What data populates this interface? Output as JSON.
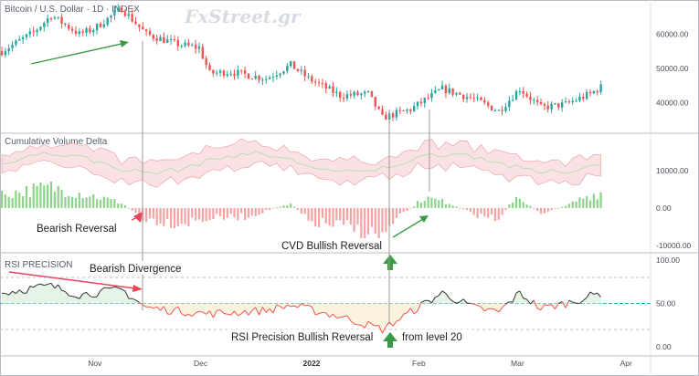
{
  "colors": {
    "up": "#26a69a",
    "down": "#ef5350",
    "arrow_green": "#3a9a45",
    "arrow_red": "#e8455b",
    "rsi_line": "#333333",
    "rsi_red": "#ef5350",
    "rsi_mid": "#2fb2b8",
    "cvd_pos_bar": "#8dd28a",
    "cvd_neg_bar": "#f5a3a3",
    "border": "#b9bcc4",
    "guide": "#9a9a9a"
  },
  "price_panel": {
    "title": "Bitcoin / U.S. Dollar · 1D · INDEX",
    "watermark": "FxStreet.gr"
  },
  "cvd_panel": {
    "title": "Cumulative Volume Delta"
  },
  "rsi_panel": {
    "title": "RSI PRECISION"
  },
  "x_axis": [
    "Nov",
    "Dec",
    "2022",
    "Feb",
    "Mar",
    "Apr"
  ],
  "annotations": {
    "bearish_reversal": "Bearish Reversal",
    "cvd_bullish_reversal": "CVD Bullish Reversal",
    "bearish_divergence": "Bearish Divergence",
    "rsi_bullish_reversal": "RSI Precision Bullish Reversal",
    "from_level": "from level 20"
  },
  "chart_data": [
    {
      "type": "candlestick",
      "title": "Bitcoin / U.S. Dollar · 1D · INDEX",
      "x_range": [
        "2021-10-06",
        "2022-03-28"
      ],
      "y_ticks": [
        40000,
        50000,
        60000
      ],
      "y_tick_labels": [
        "40000.00",
        "50000.00",
        "60000.00"
      ],
      "ylim": [
        31000,
        70000
      ],
      "close_path": [
        [
          "2021-10-06",
          55000
        ],
        [
          "2021-10-15",
          60500
        ],
        [
          "2021-10-20",
          65500
        ],
        [
          "2021-10-28",
          60000
        ],
        [
          "2021-11-01",
          61500
        ],
        [
          "2021-11-09",
          67500
        ],
        [
          "2021-11-16",
          60000
        ],
        [
          "2021-11-25",
          57000
        ],
        [
          "2021-12-01",
          56000
        ],
        [
          "2021-12-04",
          48500
        ],
        [
          "2021-12-10",
          49000
        ],
        [
          "2021-12-20",
          47000
        ],
        [
          "2021-12-27",
          51000
        ],
        [
          "2022-01-01",
          47000
        ],
        [
          "2022-01-10",
          42000
        ],
        [
          "2022-01-18",
          42500
        ],
        [
          "2022-01-22",
          35500
        ],
        [
          "2022-01-30",
          38000
        ],
        [
          "2022-02-08",
          44000
        ],
        [
          "2022-02-17",
          41000
        ],
        [
          "2022-02-24",
          37500
        ],
        [
          "2022-03-02",
          44000
        ],
        [
          "2022-03-08",
          38500
        ],
        [
          "2022-03-15",
          39500
        ],
        [
          "2022-03-22",
          42500
        ],
        [
          "2022-03-25",
          44500
        ]
      ]
    },
    {
      "type": "area",
      "title": "Cumulative Volume Delta",
      "y_ticks": [
        10000,
        0,
        -10000
      ],
      "y_tick_labels": [
        "10000.00",
        "0.00",
        "-10000.00"
      ],
      "ylim": [
        -12000,
        20000
      ],
      "histogram": [
        [
          "2021-10-06",
          4000
        ],
        [
          "2021-10-20",
          6000
        ],
        [
          "2021-11-01",
          3500
        ],
        [
          "2021-11-09",
          1500
        ],
        [
          "2021-11-15",
          -3000
        ],
        [
          "2021-11-25",
          -4500
        ],
        [
          "2021-12-04",
          -3000
        ],
        [
          "2021-12-15",
          -2500
        ],
        [
          "2021-12-27",
          1500
        ],
        [
          "2022-01-01",
          -4000
        ],
        [
          "2022-01-12",
          -5500
        ],
        [
          "2022-01-22",
          -8500
        ],
        [
          "2022-01-28",
          -1500
        ],
        [
          "2022-02-03",
          3000
        ],
        [
          "2022-02-10",
          1500
        ],
        [
          "2022-02-17",
          -2000
        ],
        [
          "2022-02-24",
          -3000
        ],
        [
          "2022-03-01",
          3500
        ],
        [
          "2022-03-08",
          -1500
        ],
        [
          "2022-03-15",
          500
        ],
        [
          "2022-03-20",
          3000
        ],
        [
          "2022-03-25",
          4500
        ]
      ]
    },
    {
      "type": "line",
      "title": "RSI PRECISION",
      "y_ticks": [
        100,
        50,
        0
      ],
      "y_tick_labels": [
        "100.00",
        "50.00",
        "0.00"
      ],
      "ylim": [
        0,
        100
      ],
      "levels": [
        80,
        50,
        20
      ],
      "rsi_path": [
        [
          "2021-10-06",
          62
        ],
        [
          "2021-10-15",
          68
        ],
        [
          "2021-10-20",
          70
        ],
        [
          "2021-10-28",
          60
        ],
        [
          "2021-11-09",
          66
        ],
        [
          "2021-11-16",
          45
        ],
        [
          "2021-12-04",
          38
        ],
        [
          "2021-12-20",
          42
        ],
        [
          "2021-12-27",
          48
        ],
        [
          "2022-01-10",
          35
        ],
        [
          "2022-01-22",
          20
        ],
        [
          "2022-02-01",
          45
        ],
        [
          "2022-02-08",
          62
        ],
        [
          "2022-02-17",
          45
        ],
        [
          "2022-02-24",
          40
        ],
        [
          "2022-03-02",
          62
        ],
        [
          "2022-03-08",
          44
        ],
        [
          "2022-03-15",
          50
        ],
        [
          "2022-03-25",
          62
        ]
      ]
    }
  ]
}
